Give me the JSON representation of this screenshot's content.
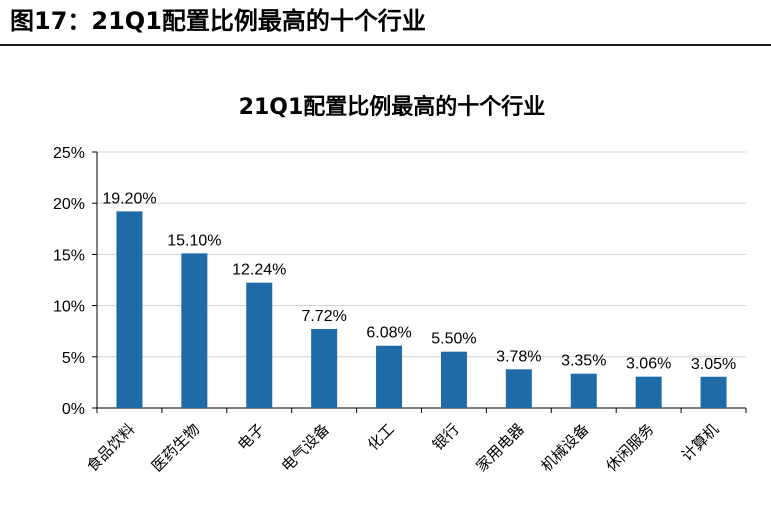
{
  "figure": {
    "label": "图17：",
    "title": "21Q1配置比例最高的十个行业"
  },
  "chart_data": {
    "type": "bar",
    "title": "21Q1配置比例最高的十个行业",
    "categories": [
      "食品饮料",
      "医药生物",
      "电子",
      "电气设备",
      "化工",
      "银行",
      "家用电器",
      "机械设备",
      "休闲服务",
      "计算机"
    ],
    "values": [
      19.2,
      15.1,
      12.24,
      7.72,
      6.08,
      5.5,
      3.78,
      3.35,
      3.06,
      3.05
    ],
    "value_labels": [
      "19.20%",
      "15.10%",
      "12.24%",
      "7.72%",
      "6.08%",
      "5.50%",
      "3.78%",
      "3.35%",
      "3.06%",
      "3.05%"
    ],
    "ylim": [
      0,
      25
    ],
    "yticks": [
      0,
      5,
      10,
      15,
      20,
      25
    ],
    "ytick_labels": [
      "0%",
      "5%",
      "10%",
      "15%",
      "20%",
      "25%"
    ],
    "xlabel": "",
    "ylabel": "",
    "grid": true,
    "bar_color": "#1f6ba8",
    "grid_color": "#d0d0d0"
  }
}
